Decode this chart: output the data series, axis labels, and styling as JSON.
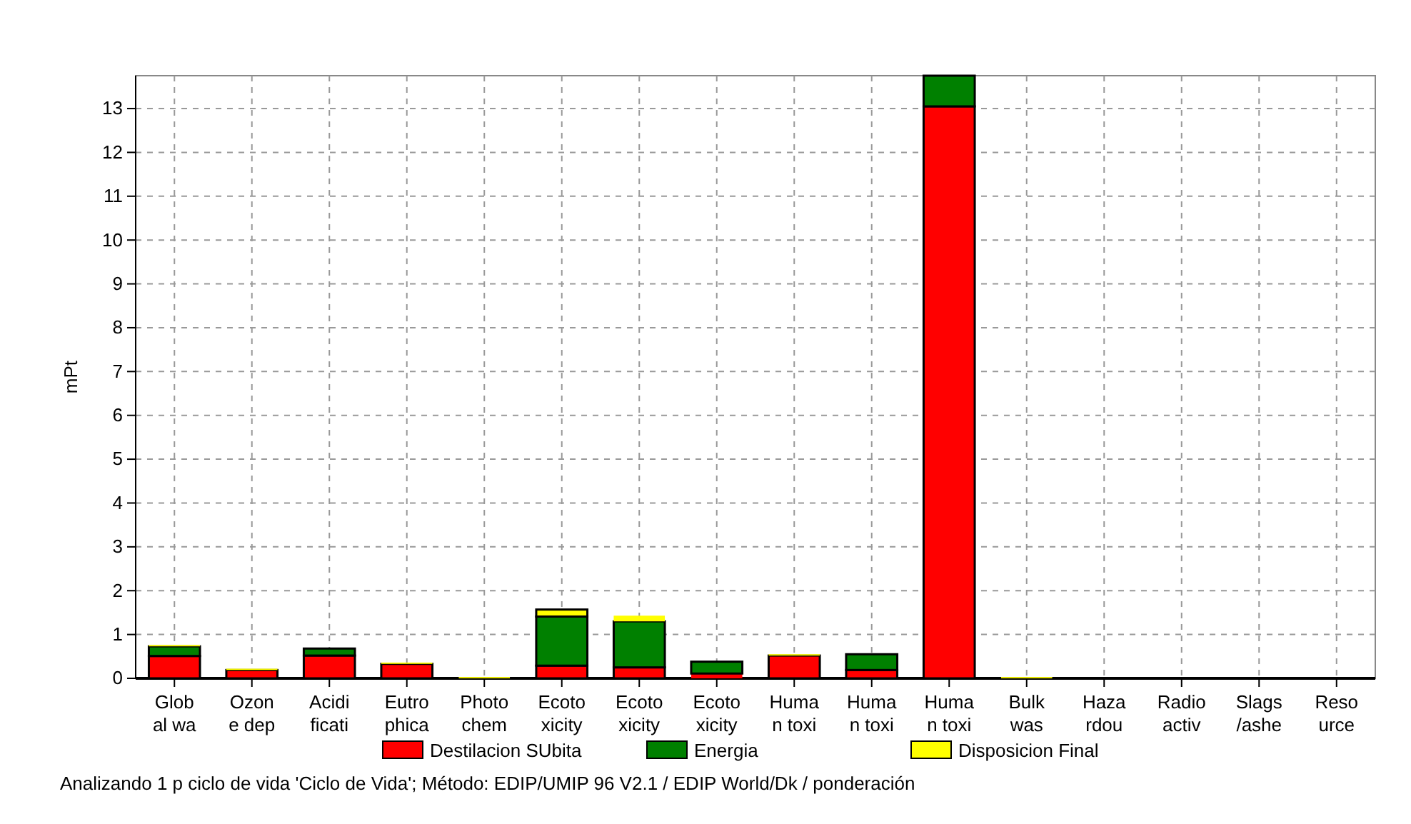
{
  "chart_data": {
    "type": "bar",
    "stacked": true,
    "ylabel": "mPt",
    "categories": [
      "Glob\nal wa",
      "Ozon\ne dep",
      "Acidi\nficati",
      "Eutro\nphica",
      "Photo\nchem",
      "Ecoto\nxicity",
      "Ecoto\nxicity",
      "Ecoto\nxicity",
      "Huma\nn toxi",
      "Huma\nn toxi",
      "Huma\nn toxi",
      "Bulk\nwas",
      "Haza\nrdou",
      "Radio\nactiv",
      "Slags\n/ashe",
      "Reso\nurce"
    ],
    "series": [
      {
        "name": "Destilacion SUbita",
        "color": "#ff0000",
        "values": [
          0.51,
          0.19,
          0.52,
          0.33,
          0,
          0.29,
          0.25,
          0.11,
          0.52,
          0.19,
          13.05,
          0,
          0,
          0,
          0,
          0
        ]
      },
      {
        "name": "Energia",
        "color": "#008000",
        "values": [
          0.22,
          0,
          0.16,
          0,
          0,
          1.12,
          1.05,
          0.27,
          0,
          0.36,
          0.7,
          0,
          0,
          0,
          0,
          0
        ]
      },
      {
        "name": "Disposicion Final",
        "color": "#ffff00",
        "values": [
          0.03,
          0.03,
          null,
          0.03,
          0.03,
          0.16,
          0.13,
          0,
          0.03,
          0,
          0,
          0.03,
          0,
          0,
          0,
          0
        ]
      }
    ],
    "ylim": [
      0,
      13.75
    ],
    "yticks": [
      0,
      1,
      2,
      3,
      4,
      5,
      6,
      7,
      8,
      9,
      10,
      11,
      12,
      13
    ],
    "grid": true,
    "legend": "bottom",
    "annotations": [
      "Analizando 1 p ciclo de vida 'Ciclo de Vida';  Método: EDIP/UMIP 96 V2.1 /  EDIP World/Dk / ponderación"
    ]
  }
}
